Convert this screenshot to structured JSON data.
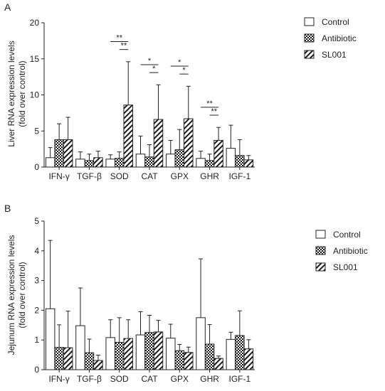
{
  "chart_data": [
    {
      "panel_label": "A",
      "type": "bar",
      "ylabel_lines": [
        "Liver RNA expression levels",
        "(fold over control)"
      ],
      "ylim": [
        0,
        20
      ],
      "yticks": [
        0,
        5,
        10,
        15,
        20
      ],
      "categories": [
        "IFN-γ",
        "TGF-β",
        "SOD",
        "CAT",
        "GPX",
        "GHR",
        "IGF-1"
      ],
      "series": [
        {
          "name": "Control",
          "pattern": "open",
          "values": [
            1.3,
            1.1,
            1.1,
            1.8,
            1.8,
            1.2,
            2.6
          ],
          "errors": [
            1.4,
            1.0,
            0.6,
            2.5,
            1.9,
            1.0,
            3.2
          ]
        },
        {
          "name": "Antibiotic",
          "pattern": "checker",
          "values": [
            3.8,
            0.9,
            1.2,
            1.4,
            2.4,
            0.9,
            1.6
          ],
          "errors": [
            2.2,
            0.9,
            0.9,
            1.7,
            2.8,
            0.9,
            2.2
          ]
        },
        {
          "name": "SL001",
          "pattern": "hatch",
          "values": [
            3.8,
            1.3,
            8.6,
            6.6,
            6.7,
            3.7,
            1.0
          ],
          "errors": [
            3.1,
            0.9,
            6.0,
            4.8,
            4.5,
            1.8,
            0.6
          ]
        }
      ],
      "significance": [
        {
          "category": "SOD",
          "pair": [
            "Control",
            "SL001"
          ],
          "label": "**"
        },
        {
          "category": "SOD",
          "pair": [
            "Antibiotic",
            "SL001"
          ],
          "label": "**"
        },
        {
          "category": "CAT",
          "pair": [
            "Control",
            "SL001"
          ],
          "label": "*"
        },
        {
          "category": "CAT",
          "pair": [
            "Antibiotic",
            "SL001"
          ],
          "label": "*"
        },
        {
          "category": "GPX",
          "pair": [
            "Control",
            "SL001"
          ],
          "label": "*"
        },
        {
          "category": "GPX",
          "pair": [
            "Antibiotic",
            "SL001"
          ],
          "label": "*"
        },
        {
          "category": "GHR",
          "pair": [
            "Control",
            "SL001"
          ],
          "label": "**"
        },
        {
          "category": "GHR",
          "pair": [
            "Antibiotic",
            "SL001"
          ],
          "label": "**"
        }
      ],
      "legend_position": "top-right"
    },
    {
      "panel_label": "B",
      "type": "bar",
      "ylabel_lines": [
        "Jejunum RNA expression levels",
        "(fold over control)"
      ],
      "ylim": [
        0,
        5
      ],
      "yticks": [
        0,
        1,
        2,
        3,
        4,
        5
      ],
      "categories": [
        "IFN-γ",
        "TGF-β",
        "SOD",
        "CAT",
        "GPX",
        "GHR",
        "IGF-1"
      ],
      "series": [
        {
          "name": "Control",
          "pattern": "open",
          "values": [
            2.05,
            1.48,
            1.08,
            1.17,
            1.06,
            1.75,
            1.02
          ],
          "errors": [
            2.3,
            1.27,
            0.6,
            0.78,
            0.47,
            1.98,
            0.24
          ]
        },
        {
          "name": "Antibiotic",
          "pattern": "checker",
          "values": [
            0.75,
            0.57,
            0.92,
            1.25,
            0.64,
            0.86,
            1.15
          ],
          "errors": [
            0.76,
            0.46,
            0.83,
            0.58,
            0.21,
            0.66,
            0.83
          ]
        },
        {
          "name": "SL001",
          "pattern": "hatch",
          "values": [
            0.74,
            0.31,
            1.05,
            1.27,
            0.58,
            0.38,
            0.7
          ],
          "errors": [
            1.23,
            0.18,
            0.63,
            0.39,
            0.18,
            0.08,
            0.31
          ]
        }
      ],
      "significance": [],
      "legend_position": "top-right"
    }
  ]
}
